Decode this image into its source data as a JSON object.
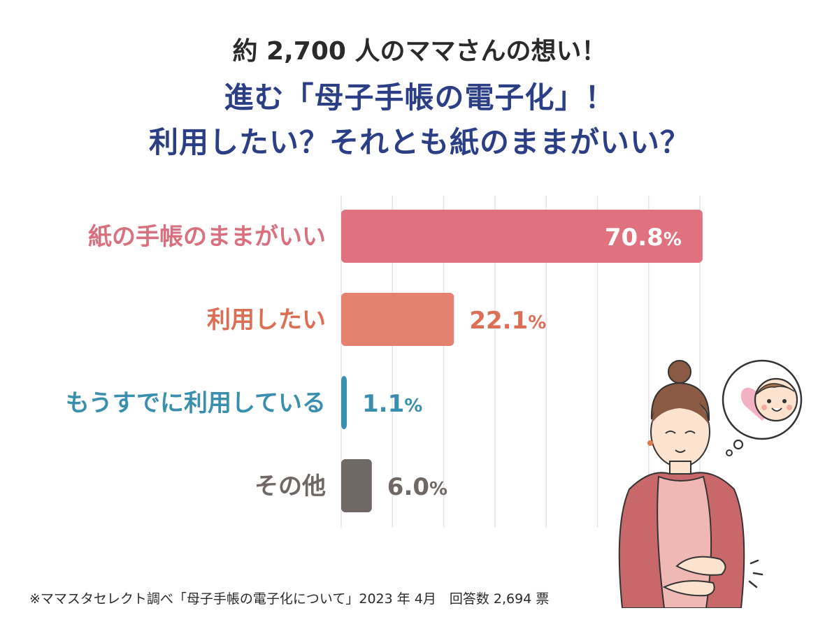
{
  "header": {
    "subtitle": "約 2,700 人のママさんの想い！",
    "title_line1": "進む「母子手帳の電子化」！",
    "title_line2": "利用したい？それとも紙のままがいい？"
  },
  "chart_data": {
    "type": "bar",
    "orientation": "horizontal",
    "categories": [
      "紙の手帳のままがいい",
      "利用したい",
      "もうすでに利用している",
      "その他"
    ],
    "values": [
      70.8,
      22.1,
      1.1,
      6.0
    ],
    "value_labels": [
      "70.8",
      "22.1",
      "1.1",
      "6.0"
    ],
    "unit": "%",
    "colors": [
      "#e07280",
      "#e5826f",
      "#3a8fae",
      "#6f6864"
    ],
    "label_colors": [
      "#d9707f",
      "#dd6e56",
      "#3a8fae",
      "#6f6864"
    ],
    "value_label_inside": [
      true,
      false,
      false,
      false
    ],
    "xlim": [
      0,
      100
    ],
    "grid": true
  },
  "footnote": "※ママスタセレクト調べ「母子手帳の電子化について」2023 年 4月　回答数 2,694 票"
}
